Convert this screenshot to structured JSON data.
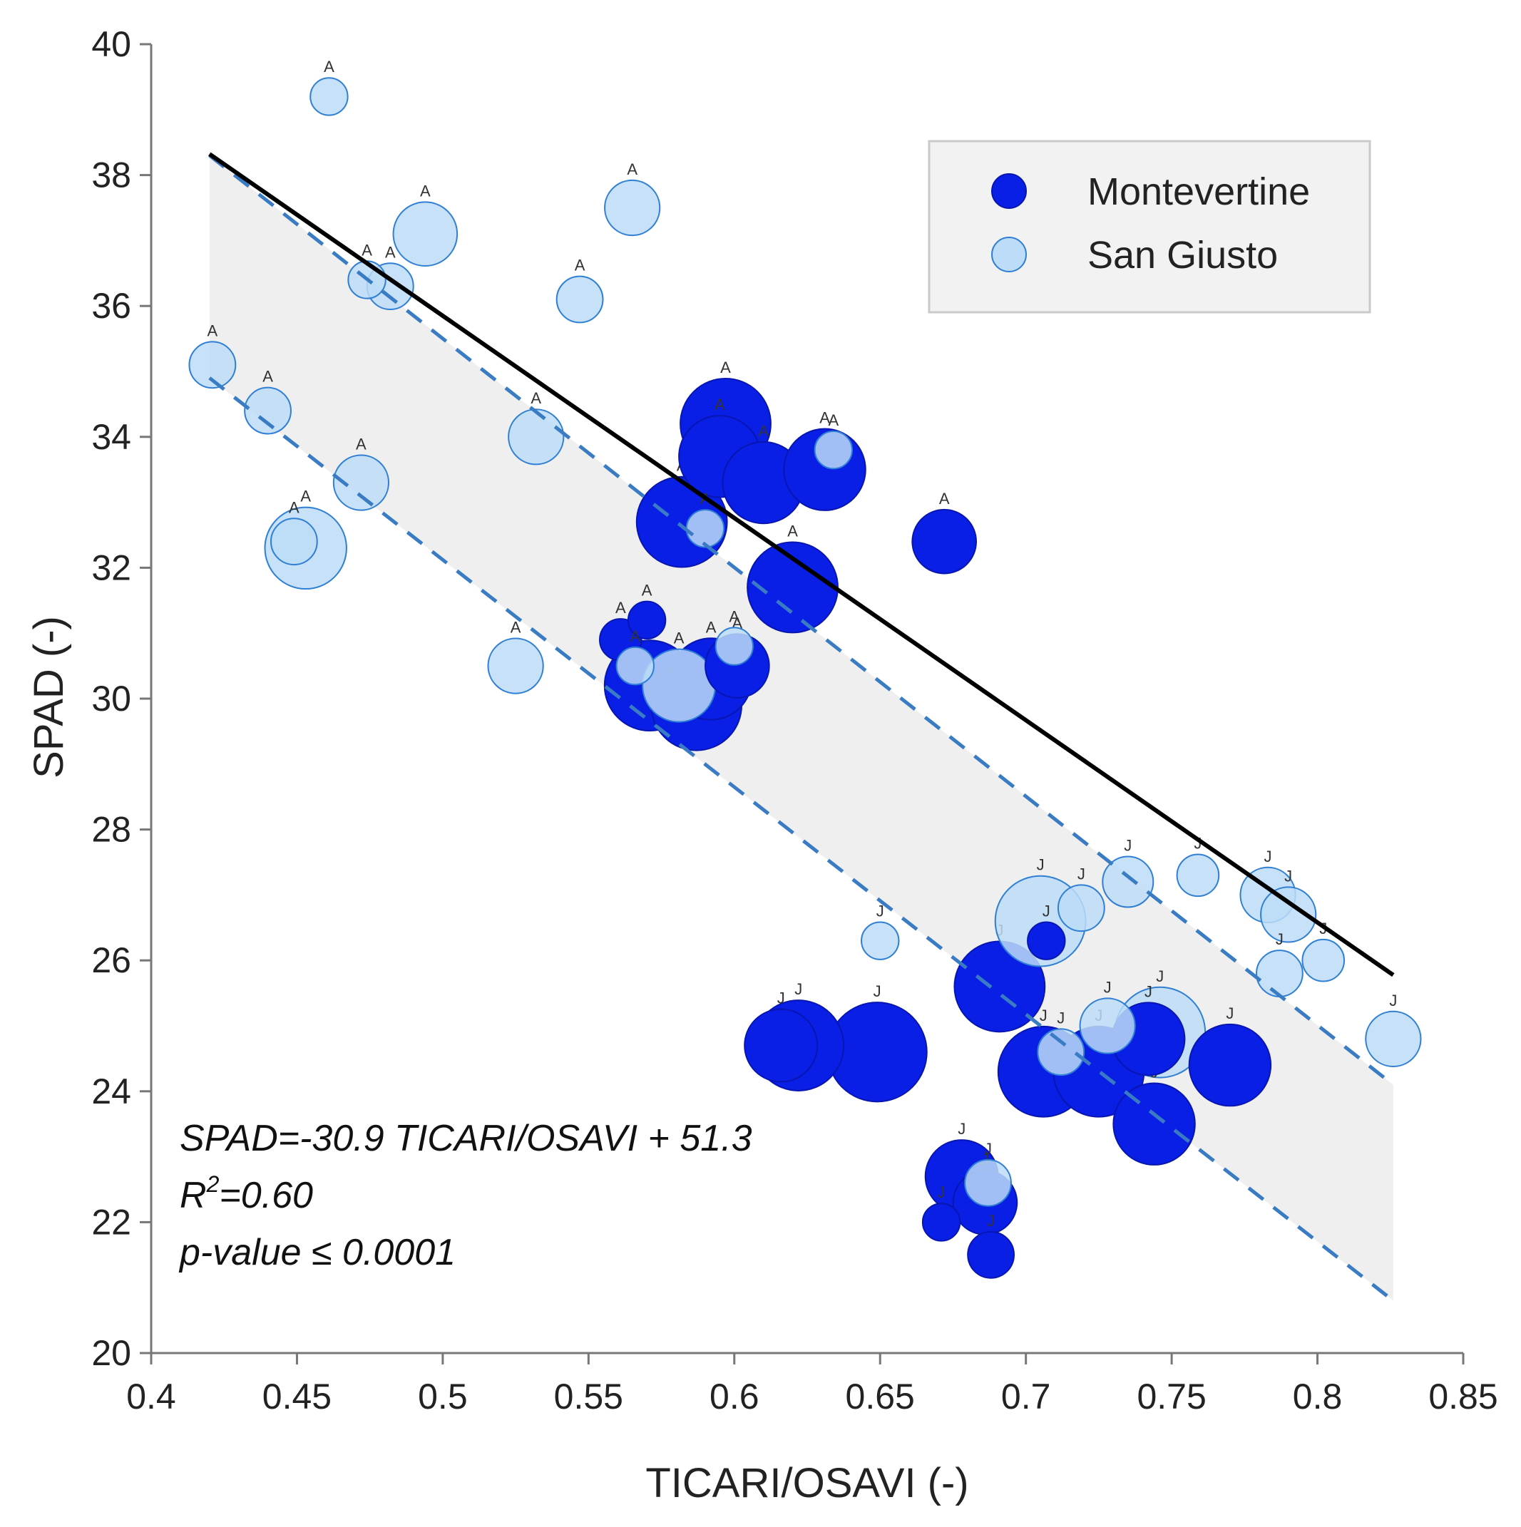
{
  "chart_data": {
    "type": "scatter",
    "xlabel": "TICARI/OSAVI (-)",
    "ylabel": "SPAD (-)",
    "xlim": [
      0.4,
      0.85
    ],
    "ylim": [
      20,
      40
    ],
    "x_ticks": [
      0.4,
      0.45,
      0.5,
      0.55,
      0.6,
      0.65,
      0.7,
      0.75,
      0.8,
      0.85
    ],
    "x_tick_labels": [
      "0.4",
      "0.45",
      "0.5",
      "0.55",
      "0.6",
      "0.65",
      "0.7",
      "0.75",
      "0.8",
      "0.85"
    ],
    "y_ticks": [
      20,
      22,
      24,
      26,
      28,
      30,
      32,
      34,
      36,
      38,
      40
    ],
    "y_tick_labels": [
      "20",
      "22",
      "24",
      "26",
      "28",
      "30",
      "32",
      "34",
      "36",
      "38",
      "40"
    ],
    "legend": {
      "position": "top-right",
      "entries": [
        {
          "name": "Montevertine",
          "color": "#0a1fe6"
        },
        {
          "name": "San Giusto",
          "color": "#bcdcf7"
        }
      ]
    },
    "annotation": {
      "equation": "SPAD=-30.9 TICARI/OSAVI + 51.3",
      "r2_prefix": "R",
      "r2_sup": "2",
      "r2_value": "=0.60",
      "pvalue": "p-value ≤ 0.0001"
    },
    "regression": {
      "slope": -30.9,
      "intercept": 51.3,
      "x_range": [
        0.42,
        0.826
      ],
      "line_color": "#000000",
      "band_color": "#efefef",
      "dashed_color": "#3a7cc4",
      "upper_y": [
        38.3,
        24.1
      ],
      "lower_y": [
        34.9,
        20.8
      ]
    },
    "series": [
      {
        "name": "Montevertine",
        "color": "#0a1fe6",
        "stroke": "#0716b0",
        "points": [
          {
            "x": 0.597,
            "y": 34.2,
            "r": 7,
            "label": "A"
          },
          {
            "x": 0.595,
            "y": 33.7,
            "r": 6,
            "label": "A"
          },
          {
            "x": 0.61,
            "y": 33.3,
            "r": 6,
            "label": "A"
          },
          {
            "x": 0.631,
            "y": 33.5,
            "r": 6,
            "label": "A"
          },
          {
            "x": 0.582,
            "y": 32.7,
            "r": 7,
            "label": "A"
          },
          {
            "x": 0.672,
            "y": 32.4,
            "r": 4,
            "label": "A"
          },
          {
            "x": 0.62,
            "y": 31.7,
            "r": 7,
            "label": "A"
          },
          {
            "x": 0.57,
            "y": 31.2,
            "r": 1,
            "label": "A"
          },
          {
            "x": 0.561,
            "y": 30.9,
            "r": 1.5,
            "label": "A"
          },
          {
            "x": 0.571,
            "y": 30.2,
            "r": 7,
            "label": "A"
          },
          {
            "x": 0.587,
            "y": 29.9,
            "r": 7,
            "label": "A"
          },
          {
            "x": 0.592,
            "y": 30.3,
            "r": 6,
            "label": "A"
          },
          {
            "x": 0.601,
            "y": 30.5,
            "r": 4,
            "label": "A"
          },
          {
            "x": 0.707,
            "y": 26.3,
            "r": 1,
            "label": "J"
          },
          {
            "x": 0.691,
            "y": 25.6,
            "r": 7,
            "label": "J"
          },
          {
            "x": 0.616,
            "y": 24.7,
            "r": 5,
            "label": "J"
          },
          {
            "x": 0.622,
            "y": 24.7,
            "r": 7,
            "label": "J"
          },
          {
            "x": 0.649,
            "y": 24.6,
            "r": 8,
            "label": "J"
          },
          {
            "x": 0.706,
            "y": 24.3,
            "r": 7,
            "label": "J"
          },
          {
            "x": 0.725,
            "y": 24.3,
            "r": 7,
            "label": "J"
          },
          {
            "x": 0.742,
            "y": 24.8,
            "r": 5,
            "label": "J"
          },
          {
            "x": 0.77,
            "y": 24.4,
            "r": 6,
            "label": "J"
          },
          {
            "x": 0.744,
            "y": 23.5,
            "r": 6,
            "label": "J"
          },
          {
            "x": 0.678,
            "y": 22.7,
            "r": 5,
            "label": "J"
          },
          {
            "x": 0.686,
            "y": 22.3,
            "r": 4,
            "label": "J"
          },
          {
            "x": 0.671,
            "y": 22.0,
            "r": 1,
            "label": "J"
          },
          {
            "x": 0.688,
            "y": 21.5,
            "r": 2,
            "label": "J"
          }
        ]
      },
      {
        "name": "San Giusto",
        "color": "#bcdcf7",
        "stroke": "#2f7fd4",
        "points": [
          {
            "x": 0.461,
            "y": 39.2,
            "r": 1,
            "label": "A"
          },
          {
            "x": 0.565,
            "y": 37.5,
            "r": 3,
            "label": "A"
          },
          {
            "x": 0.494,
            "y": 37.1,
            "r": 4,
            "label": "A"
          },
          {
            "x": 0.474,
            "y": 36.4,
            "r": 1,
            "label": "A"
          },
          {
            "x": 0.482,
            "y": 36.3,
            "r": 2,
            "label": "A"
          },
          {
            "x": 0.547,
            "y": 36.1,
            "r": 2,
            "label": "A"
          },
          {
            "x": 0.421,
            "y": 35.1,
            "r": 2,
            "label": "A"
          },
          {
            "x": 0.44,
            "y": 34.4,
            "r": 2,
            "label": "A"
          },
          {
            "x": 0.532,
            "y": 34.0,
            "r": 3,
            "label": "A"
          },
          {
            "x": 0.634,
            "y": 33.8,
            "r": 1,
            "label": "A"
          },
          {
            "x": 0.472,
            "y": 33.3,
            "r": 3,
            "label": "A"
          },
          {
            "x": 0.59,
            "y": 32.6,
            "r": 1,
            "label": "A"
          },
          {
            "x": 0.449,
            "y": 32.4,
            "r": 2,
            "label": "A"
          },
          {
            "x": 0.453,
            "y": 32.3,
            "r": 6,
            "label": "A"
          },
          {
            "x": 0.525,
            "y": 30.5,
            "r": 3,
            "label": "A"
          },
          {
            "x": 0.566,
            "y": 30.5,
            "r": 1,
            "label": "A"
          },
          {
            "x": 0.6,
            "y": 30.8,
            "r": 1,
            "label": "A"
          },
          {
            "x": 0.581,
            "y": 30.2,
            "r": 5,
            "label": "A"
          },
          {
            "x": 0.735,
            "y": 27.2,
            "r": 2.5,
            "label": "J"
          },
          {
            "x": 0.759,
            "y": 27.3,
            "r": 1.5,
            "label": "J"
          },
          {
            "x": 0.783,
            "y": 27.0,
            "r": 3,
            "label": "J"
          },
          {
            "x": 0.79,
            "y": 26.7,
            "r": 3,
            "label": "J"
          },
          {
            "x": 0.719,
            "y": 26.8,
            "r": 2,
            "label": "J"
          },
          {
            "x": 0.705,
            "y": 26.6,
            "r": 7,
            "label": "J"
          },
          {
            "x": 0.65,
            "y": 26.3,
            "r": 1,
            "label": "J"
          },
          {
            "x": 0.787,
            "y": 25.8,
            "r": 2,
            "label": "J"
          },
          {
            "x": 0.802,
            "y": 26.0,
            "r": 1.5,
            "label": "J"
          },
          {
            "x": 0.728,
            "y": 25.0,
            "r": 3,
            "label": "J"
          },
          {
            "x": 0.746,
            "y": 24.9,
            "r": 7,
            "label": "J"
          },
          {
            "x": 0.712,
            "y": 24.6,
            "r": 2,
            "label": "J"
          },
          {
            "x": 0.826,
            "y": 24.8,
            "r": 3,
            "label": "J"
          },
          {
            "x": 0.687,
            "y": 22.6,
            "r": 2,
            "label": "J"
          }
        ]
      }
    ]
  }
}
